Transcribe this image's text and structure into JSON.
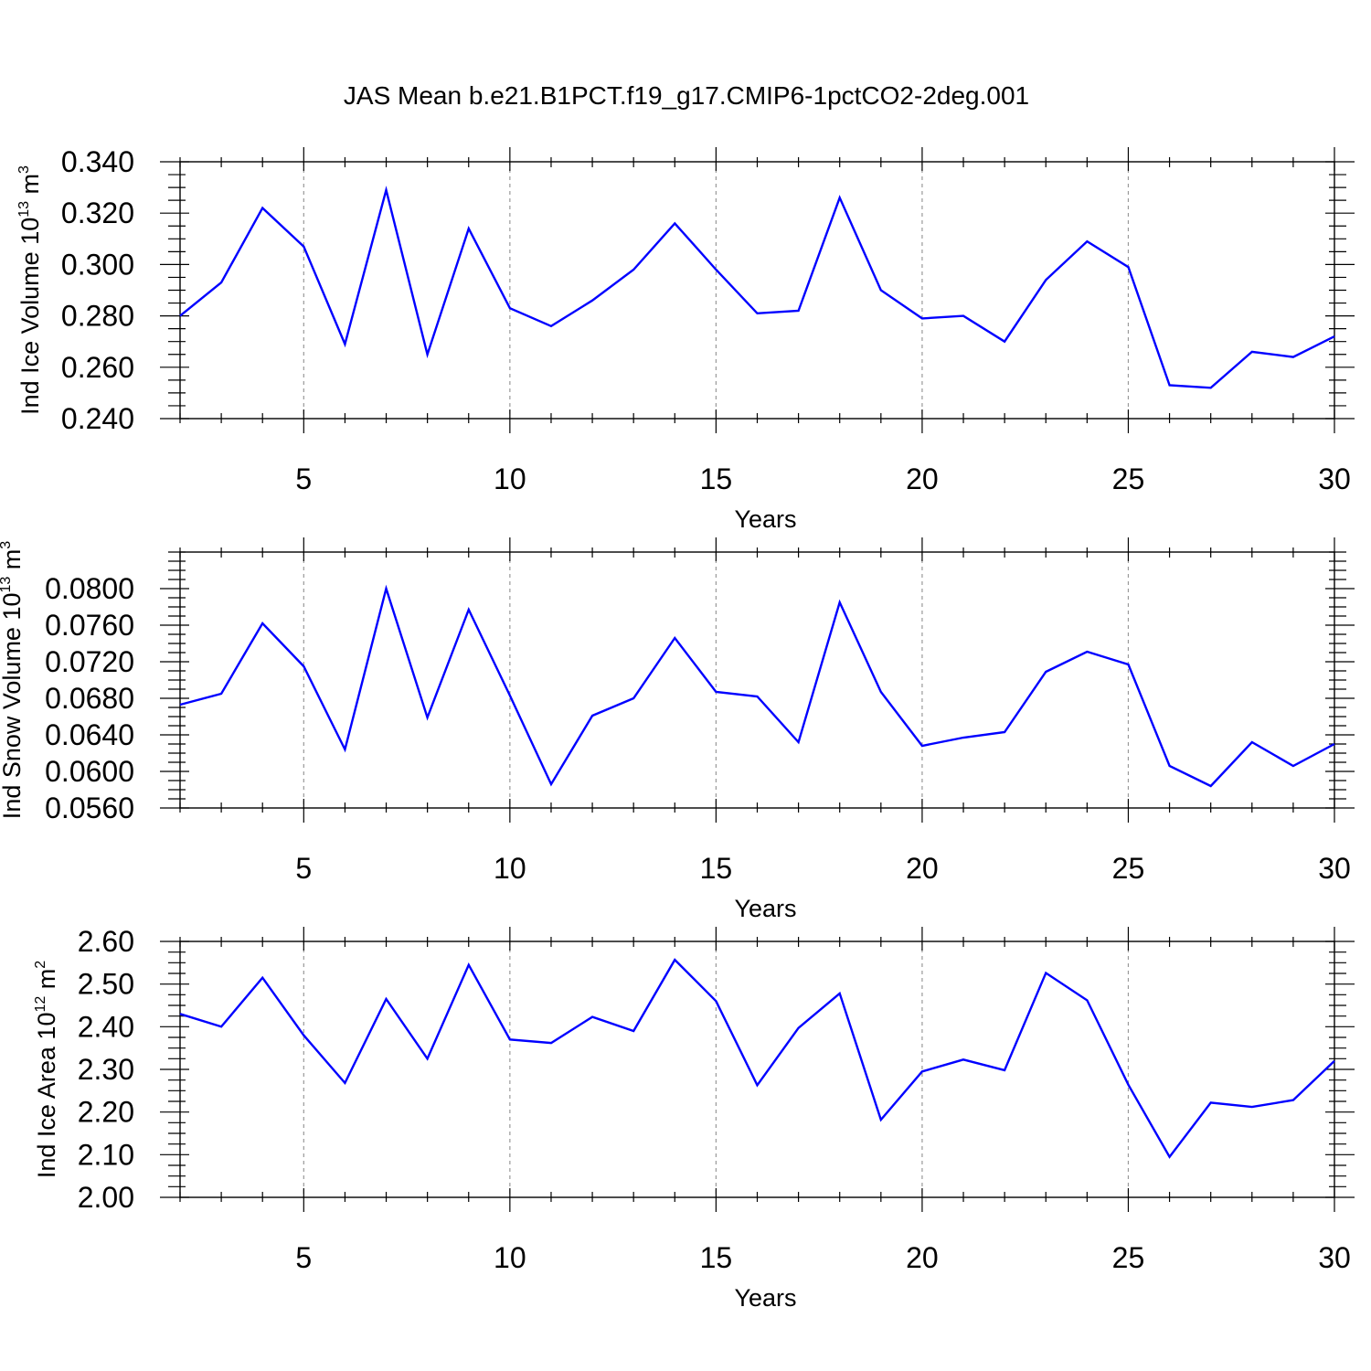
{
  "title": "JAS Mean b.e21.B1PCT.f19_g17.CMIP6-1pctCO2-2deg.001",
  "chart_data": [
    {
      "type": "line",
      "xlabel": "Years",
      "ylabel": {
        "text": "Ind Ice Volume 10",
        "exp": "13",
        "unit": " m",
        "unit_exp": "3"
      },
      "xlim": [
        2,
        30
      ],
      "ylim": [
        0.24,
        0.34
      ],
      "xticks": [
        5,
        10,
        15,
        20,
        25,
        30
      ],
      "xtick_labels": [
        "5",
        "10",
        "15",
        "20",
        "25",
        "30"
      ],
      "yticks": [
        0.24,
        0.26,
        0.28,
        0.3,
        0.32,
        0.34
      ],
      "ytick_labels": [
        "0.240",
        "0.260",
        "0.280",
        "0.300",
        "0.320",
        "0.340"
      ],
      "y_minor_step": 0.005,
      "grid": "vertical dashed at major x ticks",
      "color": "#0000ff",
      "x": [
        2,
        3,
        4,
        5,
        6,
        7,
        8,
        9,
        10,
        11,
        12,
        13,
        14,
        15,
        16,
        17,
        18,
        19,
        20,
        21,
        22,
        23,
        24,
        25,
        26,
        27,
        28,
        29,
        30
      ],
      "values": [
        0.28,
        0.293,
        0.322,
        0.307,
        0.269,
        0.329,
        0.265,
        0.314,
        0.283,
        0.276,
        0.286,
        0.298,
        0.316,
        0.298,
        0.281,
        0.282,
        0.326,
        0.29,
        0.279,
        0.28,
        0.27,
        0.294,
        0.309,
        0.299,
        0.253,
        0.252,
        0.266,
        0.264,
        0.272
      ]
    },
    {
      "type": "line",
      "xlabel": "Years",
      "ylabel": {
        "text": "Ind Snow Volume 10",
        "exp": "13",
        "unit": " m",
        "unit_exp": "3"
      },
      "xlim": [
        2,
        30
      ],
      "ylim": [
        0.056,
        0.084
      ],
      "xticks": [
        5,
        10,
        15,
        20,
        25,
        30
      ],
      "xtick_labels": [
        "5",
        "10",
        "15",
        "20",
        "25",
        "30"
      ],
      "yticks": [
        0.056,
        0.06,
        0.064,
        0.068,
        0.072,
        0.076,
        0.08
      ],
      "ytick_labels": [
        "0.0560",
        "0.0600",
        "0.0640",
        "0.0680",
        "0.0720",
        "0.0760",
        "0.0800"
      ],
      "y_minor_step": 0.001,
      "grid": "vertical dashed at major x ticks",
      "color": "#0000ff",
      "x": [
        2,
        3,
        4,
        5,
        6,
        7,
        8,
        9,
        10,
        11,
        12,
        13,
        14,
        15,
        16,
        17,
        18,
        19,
        20,
        21,
        22,
        23,
        24,
        25,
        26,
        27,
        28,
        29,
        30
      ],
      "values": [
        0.0673,
        0.0685,
        0.0762,
        0.0715,
        0.0624,
        0.08,
        0.0659,
        0.0777,
        0.0683,
        0.0586,
        0.0661,
        0.068,
        0.0746,
        0.0687,
        0.0682,
        0.0632,
        0.0785,
        0.0687,
        0.0628,
        0.0637,
        0.0643,
        0.0709,
        0.0731,
        0.0717,
        0.0606,
        0.0584,
        0.0632,
        0.0606,
        0.063
      ]
    },
    {
      "type": "line",
      "xlabel": "Years",
      "ylabel": {
        "text": "Ind Ice Area 10",
        "exp": "12",
        "unit": " m",
        "unit_exp": "2"
      },
      "xlim": [
        2,
        30
      ],
      "ylim": [
        2.0,
        2.6
      ],
      "xticks": [
        5,
        10,
        15,
        20,
        25,
        30
      ],
      "xtick_labels": [
        "5",
        "10",
        "15",
        "20",
        "25",
        "30"
      ],
      "yticks": [
        2.0,
        2.1,
        2.2,
        2.3,
        2.4,
        2.5,
        2.6
      ],
      "ytick_labels": [
        "2.00",
        "2.10",
        "2.20",
        "2.30",
        "2.40",
        "2.50",
        "2.60"
      ],
      "y_minor_step": 0.025,
      "grid": "vertical dashed at major x ticks",
      "color": "#0000ff",
      "x": [
        2,
        3,
        4,
        5,
        6,
        7,
        8,
        9,
        10,
        11,
        12,
        13,
        14,
        15,
        16,
        17,
        18,
        19,
        20,
        21,
        22,
        23,
        24,
        25,
        26,
        27,
        28,
        29,
        30
      ],
      "values": [
        2.43,
        2.4,
        2.515,
        2.38,
        2.268,
        2.465,
        2.325,
        2.545,
        2.37,
        2.362,
        2.423,
        2.39,
        2.557,
        2.46,
        2.263,
        2.397,
        2.478,
        2.182,
        2.295,
        2.323,
        2.298,
        2.526,
        2.462,
        2.264,
        2.095,
        2.222,
        2.212,
        2.228,
        2.32
      ]
    }
  ]
}
